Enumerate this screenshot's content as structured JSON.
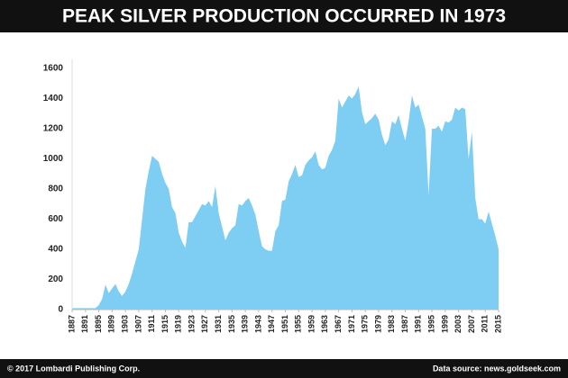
{
  "chart_data": {
    "type": "area",
    "title": "PEAK SILVER PRODUCTION OCCURRED IN 1973",
    "credit": "© 2017 Lombardi Publishing Corp.",
    "source": "Data source: news.goldseek.com",
    "x": [
      1887,
      1888,
      1889,
      1890,
      1891,
      1892,
      1893,
      1894,
      1895,
      1896,
      1897,
      1898,
      1899,
      1900,
      1901,
      1902,
      1903,
      1904,
      1905,
      1906,
      1907,
      1908,
      1909,
      1910,
      1911,
      1912,
      1913,
      1914,
      1915,
      1916,
      1917,
      1918,
      1919,
      1920,
      1921,
      1922,
      1923,
      1924,
      1925,
      1926,
      1927,
      1928,
      1929,
      1930,
      1931,
      1932,
      1933,
      1934,
      1935,
      1936,
      1937,
      1938,
      1939,
      1940,
      1941,
      1942,
      1943,
      1944,
      1945,
      1946,
      1947,
      1948,
      1949,
      1950,
      1951,
      1952,
      1953,
      1954,
      1955,
      1956,
      1957,
      1958,
      1959,
      1960,
      1961,
      1962,
      1963,
      1964,
      1965,
      1966,
      1967,
      1968,
      1969,
      1970,
      1971,
      1972,
      1973,
      1974,
      1975,
      1976,
      1977,
      1978,
      1979,
      1980,
      1981,
      1982,
      1983,
      1984,
      1985,
      1986,
      1987,
      1988,
      1989,
      1990,
      1991,
      1992,
      1993,
      1994,
      1995,
      1996,
      1997,
      1998,
      1999,
      2000,
      2001,
      2002,
      2003,
      2004,
      2005,
      2006,
      2007,
      2008,
      2009,
      2010,
      2011,
      2012,
      2013,
      2014,
      2015
    ],
    "values": [
      10,
      10,
      10,
      10,
      10,
      10,
      10,
      10,
      30,
      70,
      165,
      110,
      140,
      170,
      120,
      90,
      120,
      170,
      240,
      320,
      400,
      600,
      800,
      920,
      1020,
      1000,
      980,
      900,
      840,
      800,
      680,
      640,
      510,
      450,
      410,
      580,
      580,
      620,
      660,
      700,
      690,
      720,
      680,
      820,
      640,
      550,
      460,
      510,
      540,
      560,
      700,
      690,
      720,
      740,
      690,
      630,
      520,
      420,
      400,
      390,
      390,
      520,
      560,
      720,
      730,
      850,
      900,
      960,
      880,
      890,
      960,
      990,
      1010,
      1050,
      960,
      930,
      940,
      1020,
      1060,
      1120,
      1400,
      1340,
      1380,
      1420,
      1400,
      1430,
      1480,
      1310,
      1230,
      1250,
      1270,
      1300,
      1260,
      1160,
      1090,
      1130,
      1250,
      1230,
      1290,
      1200,
      1120,
      1250,
      1420,
      1340,
      1360,
      1280,
      1200,
      760,
      1200,
      1200,
      1220,
      1180,
      1250,
      1240,
      1260,
      1340,
      1320,
      1340,
      1330,
      1000,
      1180,
      740,
      600,
      600,
      570,
      650,
      570,
      490,
      400
    ],
    "color": "#7ecdf2",
    "xlim": [
      1887,
      2015
    ],
    "xticks": [
      1887,
      1891,
      1895,
      1899,
      1903,
      1907,
      1911,
      1915,
      1919,
      1923,
      1927,
      1931,
      1935,
      1939,
      1943,
      1947,
      1951,
      1955,
      1959,
      1963,
      1967,
      1971,
      1975,
      1979,
      1983,
      1987,
      1991,
      1995,
      1999,
      2003,
      2007,
      2011,
      2015
    ],
    "ylim": [
      0,
      1600
    ],
    "yticks": [
      0,
      200,
      400,
      600,
      800,
      1000,
      1200,
      1400,
      1600
    ],
    "grid": false
  }
}
